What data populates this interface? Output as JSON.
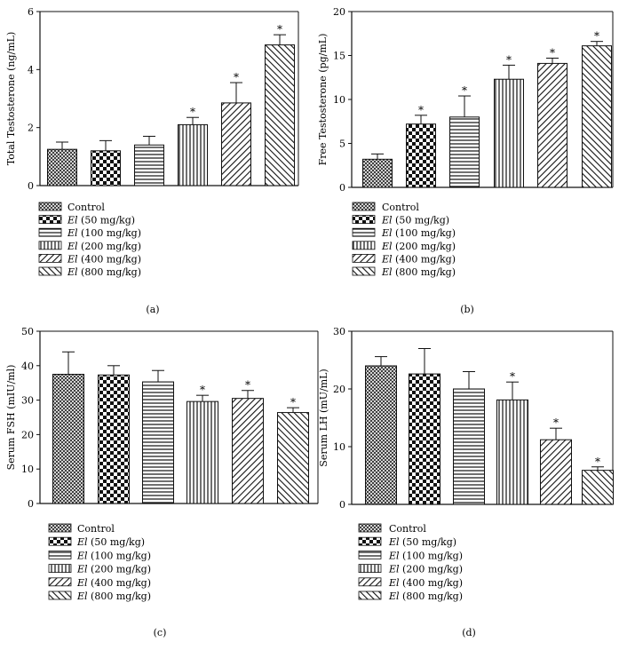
{
  "legend": {
    "control": "Control",
    "items": [
      {
        "prefix": "El",
        "dose": " (50 mg/kg)"
      },
      {
        "prefix": "El",
        "dose": " (100 mg/kg)"
      },
      {
        "prefix": "El",
        "dose": " (200 mg/kg)"
      },
      {
        "prefix": "El",
        "dose": " (400 mg/kg)"
      },
      {
        "prefix": "El",
        "dose": " (800 mg/kg)"
      }
    ]
  },
  "significance_marker": "*",
  "chart_data": [
    {
      "type": "bar",
      "caption": "(a)",
      "ylabel": "Total Testosterone (ng/mL)",
      "ylim": [
        0,
        6
      ],
      "yticks": [
        0,
        2,
        4,
        6
      ],
      "categories": [
        "Control",
        "El (50 mg/kg)",
        "El (100 mg/kg)",
        "El (200 mg/kg)",
        "El (400 mg/kg)",
        "El (800 mg/kg)"
      ],
      "values": [
        1.25,
        1.2,
        1.4,
        2.1,
        2.85,
        4.85
      ],
      "errors": [
        0.25,
        0.35,
        0.3,
        0.25,
        0.7,
        0.35
      ],
      "significant": [
        false,
        false,
        false,
        true,
        true,
        true
      ]
    },
    {
      "type": "bar",
      "caption": "(b)",
      "ylabel": "Free Testosterone (pg/mL)",
      "ylim": [
        0,
        20
      ],
      "yticks": [
        0,
        5,
        10,
        15,
        20
      ],
      "categories": [
        "Control",
        "El (50 mg/kg)",
        "El (100 mg/kg)",
        "El (200 mg/kg)",
        "El (400 mg/kg)",
        "El (800 mg/kg)"
      ],
      "values": [
        3.2,
        7.2,
        8.0,
        12.3,
        14.1,
        16.1
      ],
      "errors": [
        0.6,
        1.0,
        2.4,
        1.6,
        0.6,
        0.5
      ],
      "significant": [
        false,
        true,
        true,
        true,
        true,
        true
      ]
    },
    {
      "type": "bar",
      "caption": "(c)",
      "ylabel": "Serum FSH (mIU/ml)",
      "ylim": [
        0,
        50
      ],
      "yticks": [
        0,
        10,
        20,
        30,
        40,
        50
      ],
      "categories": [
        "Control",
        "El (50 mg/kg)",
        "El (100 mg/kg)",
        "El (200 mg/kg)",
        "El (400 mg/kg)",
        "El (800 mg/kg)"
      ],
      "values": [
        37.5,
        37.3,
        35.3,
        29.6,
        30.5,
        26.4
      ],
      "errors": [
        6.5,
        2.7,
        3.3,
        1.8,
        2.3,
        1.4
      ],
      "significant": [
        false,
        false,
        false,
        true,
        true,
        true
      ]
    },
    {
      "type": "bar",
      "caption": "(d)",
      "ylabel": "Serum LH (mU/mL)",
      "ylim": [
        0,
        30
      ],
      "yticks": [
        0,
        10,
        20,
        30
      ],
      "categories": [
        "Control",
        "El (50 mg/kg)",
        "El (100 mg/kg)",
        "El (200 mg/kg)",
        "El (400 mg/kg)",
        "El (800 mg/kg)"
      ],
      "values": [
        24.0,
        22.6,
        20.0,
        18.1,
        11.2,
        5.9
      ],
      "errors": [
        1.6,
        4.4,
        3.0,
        3.1,
        2.0,
        0.6
      ],
      "significant": [
        false,
        false,
        false,
        true,
        true,
        true
      ]
    }
  ]
}
